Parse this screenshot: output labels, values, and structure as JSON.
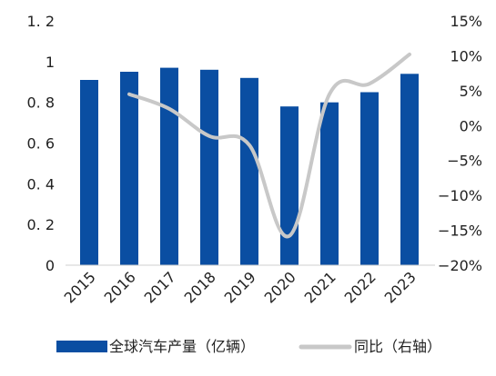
{
  "chart_data": {
    "type": "bar+line",
    "categories": [
      "2015",
      "2016",
      "2017",
      "2018",
      "2019",
      "2020",
      "2021",
      "2022",
      "2023"
    ],
    "series": [
      {
        "name": "全球汽车产量（亿辆）",
        "type": "bar",
        "axis": "left",
        "color": "#0A4EA2",
        "values": [
          0.91,
          0.95,
          0.97,
          0.96,
          0.92,
          0.78,
          0.8,
          0.85,
          0.94
        ]
      },
      {
        "name": "同比（右轴）",
        "type": "line",
        "axis": "right",
        "color": "#C8C8C8",
        "values": [
          null,
          4.5,
          2.4,
          -1.5,
          -2.8,
          -15.8,
          4.5,
          6.0,
          10.2
        ]
      }
    ],
    "y_left": {
      "range": [
        0,
        1.2
      ],
      "ticks": [
        0,
        0.2,
        0.4,
        0.6,
        0.8,
        1.0,
        1.2
      ],
      "tick_labels": [
        "0",
        "0. 2",
        "0. 4",
        "0. 6",
        "0. 8",
        "1",
        "1. 2"
      ]
    },
    "y_right": {
      "range": [
        -20,
        15
      ],
      "ticks": [
        15,
        10,
        5,
        0,
        -5,
        -10,
        -15,
        -20
      ],
      "tick_labels": [
        "15%",
        "10%",
        "5%",
        "0%",
        "−5%",
        "−10%",
        "−15%",
        "−20%"
      ]
    },
    "x_tick_rotation": "-45deg",
    "grid": false,
    "legend_position": "bottom"
  }
}
